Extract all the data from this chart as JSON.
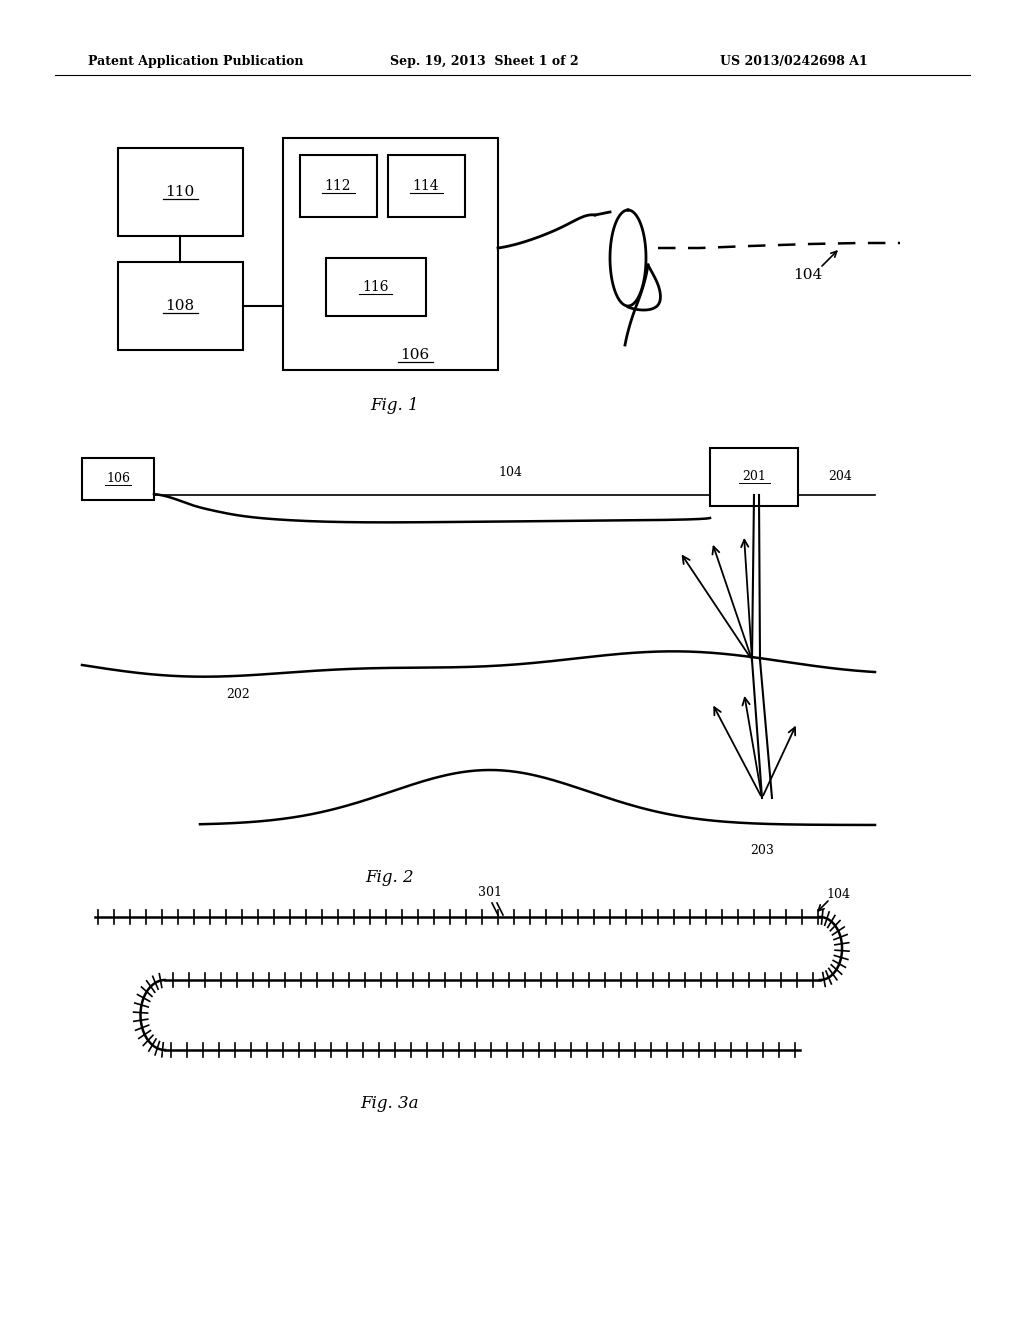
{
  "bg_color": "#ffffff",
  "header_text": "Patent Application Publication",
  "header_date": "Sep. 19, 2013  Sheet 1 of 2",
  "header_patent": "US 2013/0242698 A1",
  "fig1_caption": "Fig. 1",
  "fig2_caption": "Fig. 2",
  "fig3_caption": "Fig. 3a",
  "text_color": "#000000",
  "line_color": "#000000"
}
